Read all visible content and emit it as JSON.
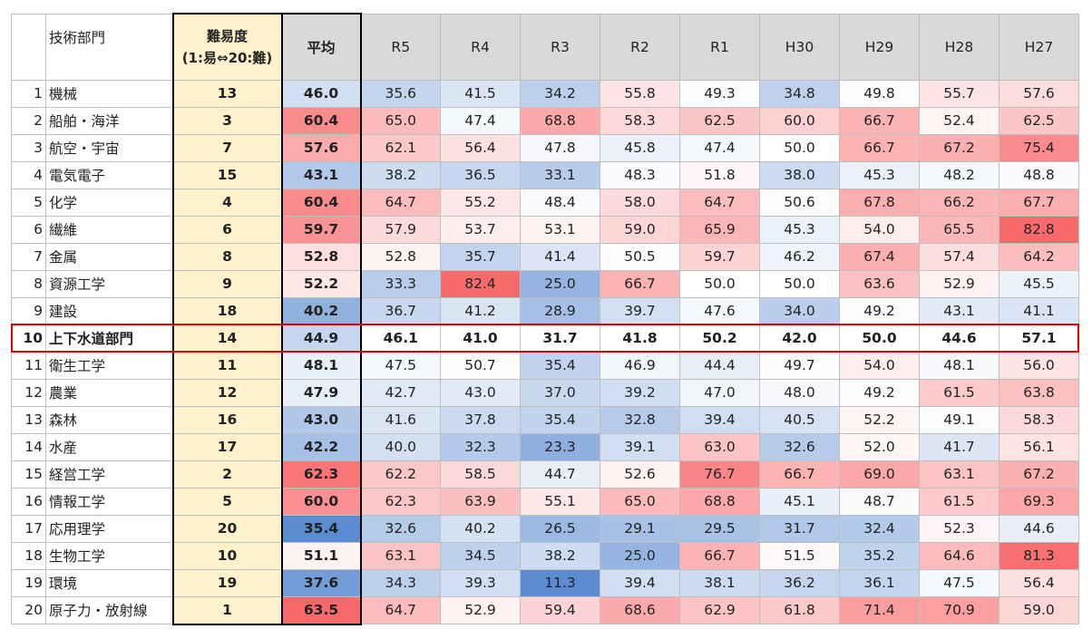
{
  "headers": {
    "dept": "技術部門",
    "difficulty_line1": "難易度",
    "difficulty_line2": "(1:易⇔20:難)",
    "average": "平均",
    "years": [
      "R5",
      "R4",
      "R3",
      "R2",
      "R1",
      "H30",
      "H29",
      "H28",
      "H27"
    ]
  },
  "highlight_row_no": 10,
  "colors": {
    "low": "#5b8bd0",
    "mid": "#ffffff",
    "high": "#f8696b",
    "difficulty_bg": "#fff2cc",
    "highlight_border": "#e00000"
  },
  "rows": [
    {
      "no": "1",
      "name": "機械",
      "difficulty": "13",
      "average": "46.0",
      "values": [
        "35.6",
        "41.5",
        "34.2",
        "55.8",
        "49.3",
        "34.8",
        "49.8",
        "55.7",
        "57.6"
      ]
    },
    {
      "no": "2",
      "name": "船舶・海洋",
      "difficulty": "3",
      "average": "60.4",
      "values": [
        "65.0",
        "47.4",
        "68.8",
        "58.3",
        "62.5",
        "60.0",
        "66.7",
        "52.4",
        "62.5"
      ]
    },
    {
      "no": "3",
      "name": "航空・宇宙",
      "difficulty": "7",
      "average": "57.6",
      "values": [
        "62.1",
        "56.4",
        "47.8",
        "45.8",
        "47.4",
        "50.0",
        "66.7",
        "67.2",
        "75.4"
      ]
    },
    {
      "no": "4",
      "name": "電気電子",
      "difficulty": "15",
      "average": "43.1",
      "values": [
        "38.2",
        "36.5",
        "33.1",
        "48.3",
        "51.8",
        "38.0",
        "45.3",
        "48.2",
        "48.8"
      ]
    },
    {
      "no": "5",
      "name": "化学",
      "difficulty": "4",
      "average": "60.4",
      "values": [
        "64.7",
        "55.2",
        "48.4",
        "58.0",
        "64.7",
        "50.6",
        "67.8",
        "66.2",
        "67.7"
      ]
    },
    {
      "no": "6",
      "name": "繊維",
      "difficulty": "6",
      "average": "59.7",
      "values": [
        "57.9",
        "53.7",
        "53.1",
        "59.0",
        "65.9",
        "45.3",
        "54.0",
        "65.5",
        "82.8"
      ]
    },
    {
      "no": "7",
      "name": "金属",
      "difficulty": "8",
      "average": "52.8",
      "values": [
        "52.8",
        "35.7",
        "41.4",
        "50.5",
        "59.7",
        "46.2",
        "67.4",
        "57.4",
        "64.2"
      ]
    },
    {
      "no": "8",
      "name": "資源工学",
      "difficulty": "9",
      "average": "52.2",
      "values": [
        "33.3",
        "82.4",
        "25.0",
        "66.7",
        "50.0",
        "50.0",
        "63.6",
        "52.9",
        "45.5"
      ]
    },
    {
      "no": "9",
      "name": "建設",
      "difficulty": "18",
      "average": "40.2",
      "values": [
        "36.7",
        "41.2",
        "28.9",
        "39.7",
        "47.6",
        "34.0",
        "49.2",
        "43.1",
        "41.1"
      ]
    },
    {
      "no": "10",
      "name": "上下水道部門",
      "difficulty": "14",
      "average": "44.9",
      "values": [
        "46.1",
        "41.0",
        "31.7",
        "41.8",
        "50.2",
        "42.0",
        "50.0",
        "44.6",
        "57.1"
      ]
    },
    {
      "no": "11",
      "name": "衛生工学",
      "difficulty": "11",
      "average": "48.1",
      "values": [
        "47.5",
        "50.7",
        "35.4",
        "46.9",
        "44.4",
        "49.7",
        "54.0",
        "48.1",
        "56.0"
      ]
    },
    {
      "no": "12",
      "name": "農業",
      "difficulty": "12",
      "average": "47.9",
      "values": [
        "42.7",
        "43.0",
        "37.0",
        "39.2",
        "47.0",
        "48.0",
        "49.2",
        "61.5",
        "63.8"
      ]
    },
    {
      "no": "13",
      "name": "森林",
      "difficulty": "16",
      "average": "43.0",
      "values": [
        "41.6",
        "37.8",
        "35.4",
        "32.8",
        "39.4",
        "40.5",
        "52.2",
        "49.1",
        "58.3"
      ]
    },
    {
      "no": "14",
      "name": "水産",
      "difficulty": "17",
      "average": "42.2",
      "values": [
        "40.0",
        "32.3",
        "23.3",
        "39.1",
        "63.0",
        "32.6",
        "52.0",
        "41.7",
        "56.1"
      ]
    },
    {
      "no": "15",
      "name": "経営工学",
      "difficulty": "2",
      "average": "62.3",
      "values": [
        "62.2",
        "58.5",
        "44.7",
        "52.6",
        "76.7",
        "66.7",
        "69.0",
        "63.1",
        "67.2"
      ]
    },
    {
      "no": "16",
      "name": "情報工学",
      "difficulty": "5",
      "average": "60.0",
      "values": [
        "62.3",
        "63.9",
        "55.1",
        "65.0",
        "68.8",
        "45.1",
        "48.7",
        "61.5",
        "69.3"
      ]
    },
    {
      "no": "17",
      "name": "応用理学",
      "difficulty": "20",
      "average": "35.4",
      "values": [
        "32.6",
        "40.2",
        "26.5",
        "29.1",
        "29.5",
        "31.7",
        "32.4",
        "52.3",
        "44.6"
      ]
    },
    {
      "no": "18",
      "name": "生物工学",
      "difficulty": "10",
      "average": "51.1",
      "values": [
        "63.1",
        "34.5",
        "38.2",
        "25.0",
        "66.7",
        "51.5",
        "35.2",
        "64.6",
        "81.3"
      ]
    },
    {
      "no": "19",
      "name": "環境",
      "difficulty": "19",
      "average": "37.6",
      "values": [
        "34.3",
        "39.3",
        "11.3",
        "39.4",
        "38.1",
        "36.2",
        "36.1",
        "47.5",
        "56.4"
      ]
    },
    {
      "no": "20",
      "name": "原子力・放射線",
      "difficulty": "1",
      "average": "63.5",
      "values": [
        "64.7",
        "52.9",
        "59.4",
        "68.6",
        "62.9",
        "61.8",
        "71.4",
        "70.9",
        "59.0"
      ]
    }
  ]
}
